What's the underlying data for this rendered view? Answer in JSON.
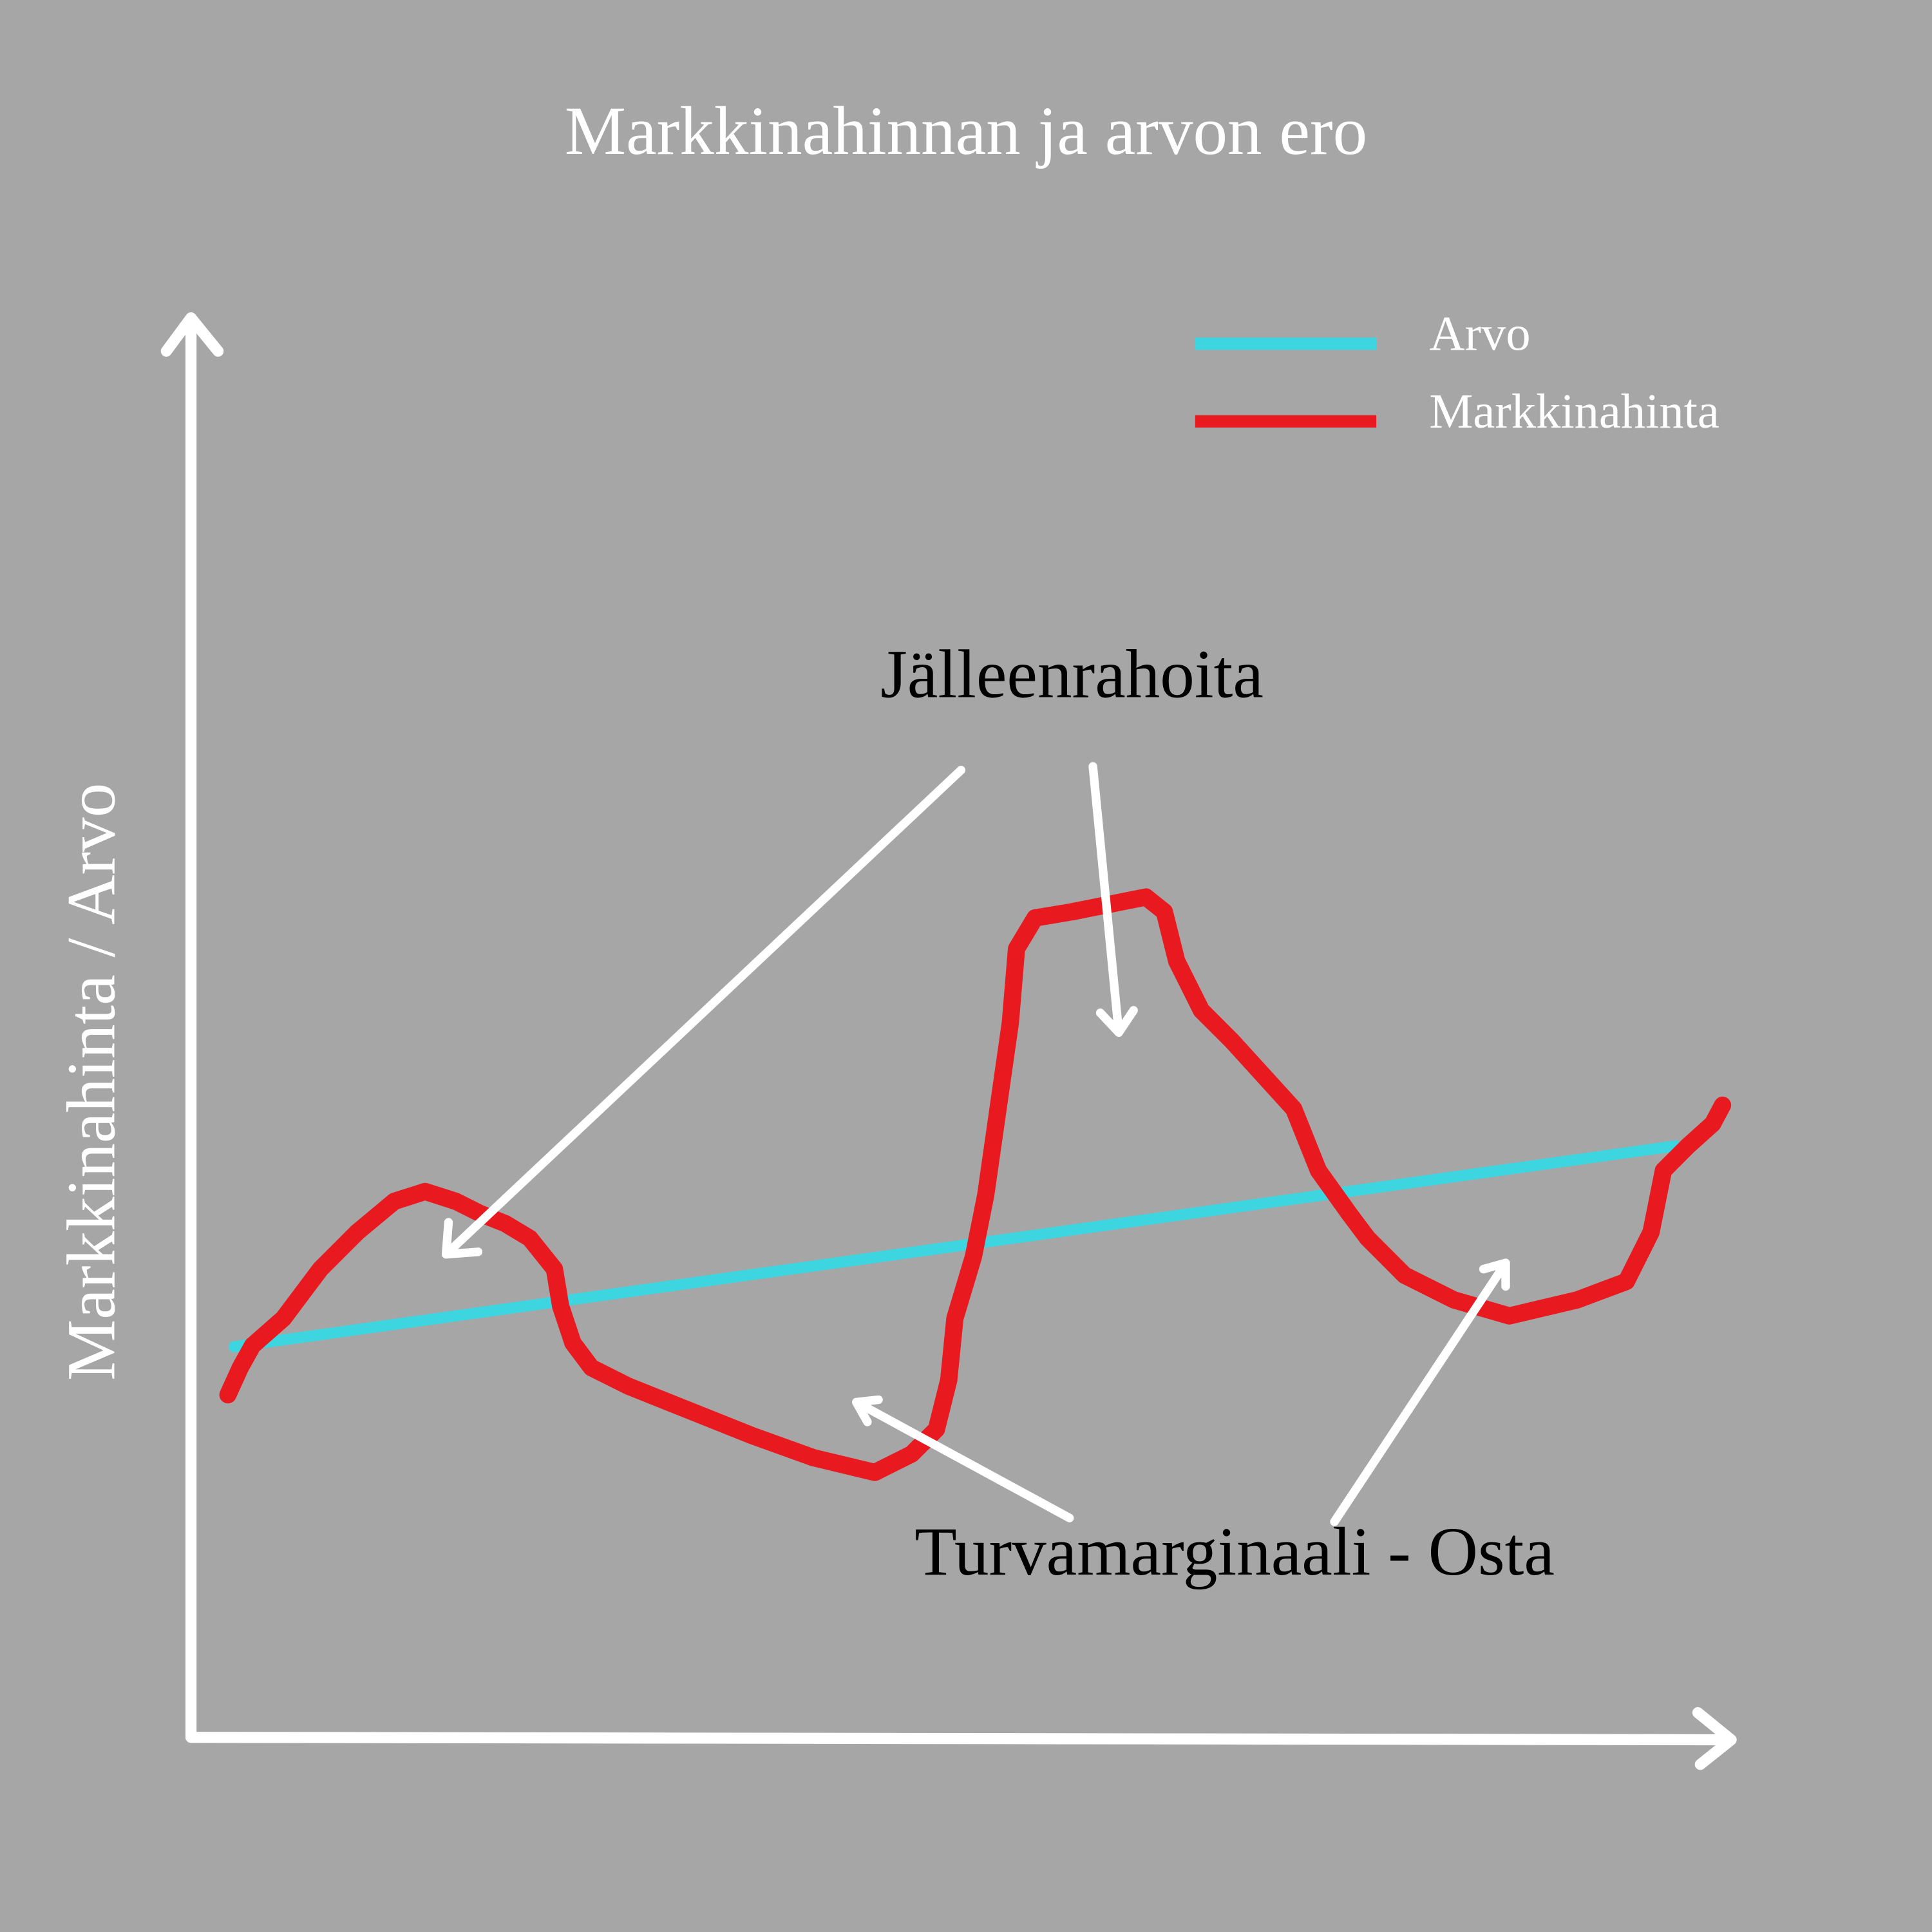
{
  "title": "Markkinahinnan ja arvon ero",
  "y_axis_label": "Markkinahinta / Arvo",
  "legend": [
    {
      "name": "Arvo",
      "color": "#3dd6e0"
    },
    {
      "name": "Markkinahinta",
      "color": "#e8191f"
    }
  ],
  "annotations": [
    "Jälleenrahoita",
    "Turvamarginaali - Osta"
  ]
}
